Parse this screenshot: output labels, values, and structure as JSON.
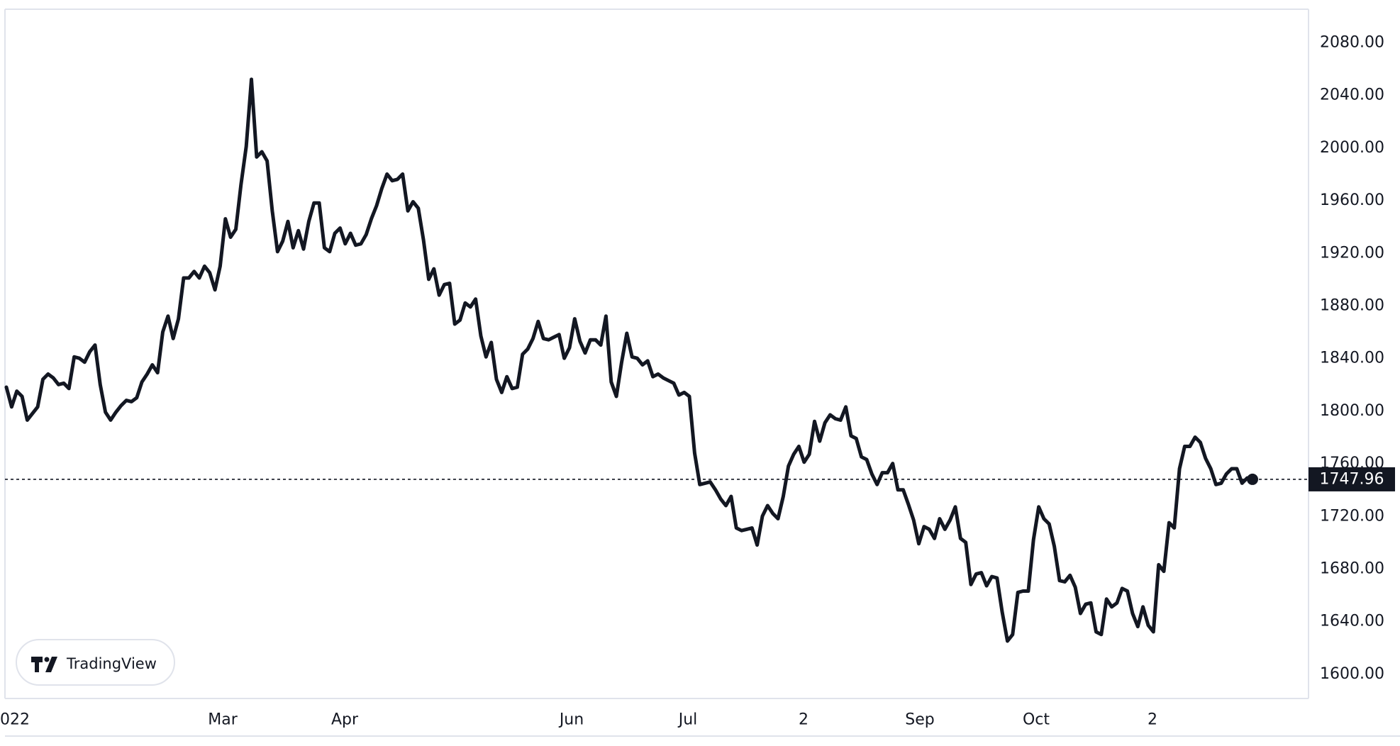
{
  "chart_data": {
    "type": "line",
    "ylim": [
      1580,
      2104
    ],
    "y_ticks": [
      "2080.00",
      "2040.00",
      "2000.00",
      "1960.00",
      "1920.00",
      "1880.00",
      "1840.00",
      "1800.00",
      "1760.00",
      "1720.00",
      "1680.00",
      "1640.00",
      "1600.00"
    ],
    "x_ticks": [
      "022",
      "Mar",
      "Apr",
      "Jun",
      "Jul",
      "2",
      "Sep",
      "Oct",
      "2"
    ],
    "last_value": 1747.96,
    "last_value_label": "1747.96",
    "line_color": "#131722",
    "series": [
      {
        "values": [
          1818,
          1803,
          1815,
          1811,
          1793,
          1798,
          1803,
          1824,
          1828,
          1825,
          1820,
          1821,
          1817,
          1841,
          1840,
          1837,
          1845,
          1850,
          1820,
          1799,
          1793,
          1799,
          1804,
          1808,
          1807,
          1810,
          1822,
          1828,
          1835,
          1829,
          1860,
          1872,
          1855,
          1870,
          1901,
          1901,
          1906,
          1901,
          1910,
          1905,
          1892,
          1910,
          1946,
          1932,
          1938,
          1972,
          2001,
          2052,
          1993,
          1997,
          1990,
          1952,
          1921,
          1929,
          1944,
          1924,
          1937,
          1923,
          1944,
          1958,
          1958,
          1924,
          1921,
          1935,
          1939,
          1927,
          1935,
          1926,
          1927,
          1934,
          1946,
          1956,
          1969,
          1980,
          1975,
          1976,
          1980,
          1952,
          1959,
          1954,
          1930,
          1900,
          1908,
          1888,
          1896,
          1897,
          1866,
          1869,
          1882,
          1879,
          1885,
          1857,
          1841,
          1852,
          1824,
          1814,
          1826,
          1817,
          1818,
          1843,
          1847,
          1855,
          1868,
          1855,
          1854,
          1856,
          1858,
          1840,
          1848,
          1870,
          1853,
          1844,
          1854,
          1854,
          1850,
          1872,
          1822,
          1811,
          1837,
          1859,
          1841,
          1840,
          1835,
          1838,
          1826,
          1828,
          1825,
          1823,
          1821,
          1812,
          1814,
          1811,
          1768,
          1744,
          1745,
          1746,
          1740,
          1733,
          1728,
          1735,
          1711,
          1709,
          1710,
          1711,
          1698,
          1720,
          1728,
          1722,
          1718,
          1735,
          1758,
          1767,
          1773,
          1761,
          1767,
          1792,
          1777,
          1791,
          1797,
          1794,
          1793,
          1803,
          1781,
          1779,
          1765,
          1763,
          1752,
          1744,
          1753,
          1753,
          1760,
          1740,
          1740,
          1729,
          1717,
          1699,
          1712,
          1710,
          1703,
          1718,
          1710,
          1717,
          1727,
          1703,
          1700,
          1668,
          1676,
          1677,
          1667,
          1674,
          1673,
          1647,
          1625,
          1630,
          1662,
          1663,
          1663,
          1702,
          1727,
          1718,
          1714,
          1697,
          1671,
          1670,
          1675,
          1666,
          1646,
          1653,
          1654,
          1632,
          1630,
          1657,
          1651,
          1654,
          1665,
          1663,
          1646,
          1636,
          1651,
          1637,
          1632,
          1683,
          1678,
          1715,
          1711,
          1756,
          1773,
          1773,
          1780,
          1776,
          1764,
          1756,
          1744,
          1745,
          1752,
          1756,
          1756,
          1745,
          1749,
          1748
        ]
      }
    ]
  },
  "watermark": {
    "brand": "TradingView"
  }
}
